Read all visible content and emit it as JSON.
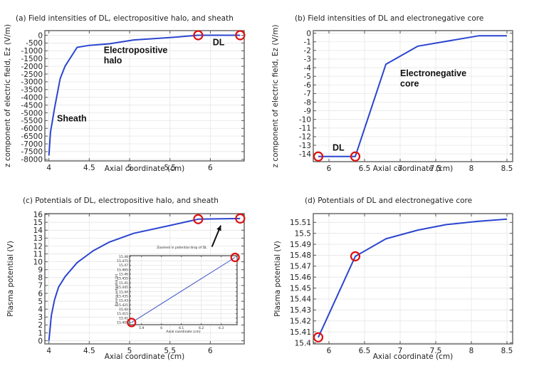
{
  "chart_data": [
    {
      "id": "a",
      "type": "line",
      "title": "(a) Field intensities of DL, electropositive halo, and sheath",
      "xlabel": "Axial coordinate (cm)",
      "ylabel": "z component of electric field, Ez (V/m)",
      "xlim": [
        3.95,
        6.42
      ],
      "ylim": [
        -8100,
        300
      ],
      "xticks": [
        4,
        4.5,
        5,
        5.5,
        6
      ],
      "xtick_labels": [
        "4",
        "4.5",
        "5",
        "5.5",
        "6"
      ],
      "yticks": [
        0,
        -500,
        -1000,
        -1500,
        -2000,
        -2500,
        -3000,
        -3500,
        -4000,
        -4500,
        -5000,
        -5500,
        -6000,
        -6500,
        -7000,
        -7500,
        -8000
      ],
      "ytick_labels": [
        "0",
        "-500",
        "-1000",
        "-1500",
        "-2000",
        "-2500",
        "-3000",
        "-3500",
        "-4000",
        "-4500",
        "-5000",
        "-5500",
        "-6000",
        "-6500",
        "-7000",
        "-7500",
        "-8000"
      ],
      "grid": true,
      "series": [
        {
          "name": "Ez",
          "x": [
            4.0,
            4.02,
            4.07,
            4.14,
            4.2,
            4.35,
            4.5,
            4.75,
            5.05,
            5.5,
            5.85,
            6.37
          ],
          "y": [
            -7750,
            -6250,
            -4700,
            -2800,
            -2000,
            -780,
            -650,
            -550,
            -300,
            -150,
            0,
            0
          ]
        }
      ],
      "markers": [
        {
          "x": 5.85,
          "y": 0
        },
        {
          "x": 6.37,
          "y": 0
        }
      ],
      "annotations": [
        {
          "text": "DL",
          "x": 6.03,
          "y": -650
        },
        {
          "text": "Electropositive",
          "x": 4.68,
          "y": -1150
        },
        {
          "text": "halo",
          "x": 4.68,
          "y": -1800
        },
        {
          "text": "Sheath",
          "x": 4.1,
          "y": -5550
        }
      ]
    },
    {
      "id": "b",
      "type": "line",
      "title": "(b) Field intensities of DL and electronegative core",
      "xlabel": "Axial coordinate (cm)",
      "ylabel": "z component of electric field, Ez (V/m)",
      "xlim": [
        5.78,
        8.58
      ],
      "ylim": [
        -14.9,
        0.3
      ],
      "xticks": [
        6,
        6.5,
        7,
        7.5,
        8,
        8.5
      ],
      "xtick_labels": [
        "6",
        "6.5",
        "7",
        "7.5",
        "8",
        "8.5"
      ],
      "yticks": [
        0,
        -1,
        -2,
        -3,
        -4,
        -5,
        -6,
        -7,
        -8,
        -9,
        -10,
        -11,
        -12,
        -13,
        -14
      ],
      "ytick_labels": [
        "0",
        "-1",
        "-2",
        "-3",
        "-4",
        "-5",
        "-6",
        "-7",
        "-8",
        "-9",
        "-10",
        "-11",
        "-12",
        "-13",
        "-14"
      ],
      "grid": true,
      "series": [
        {
          "name": "Ez",
          "x": [
            5.85,
            6.37,
            6.8,
            7.25,
            8.1,
            8.5
          ],
          "y": [
            -14.3,
            -14.3,
            -3.6,
            -1.5,
            -0.3,
            -0.3
          ]
        }
      ],
      "markers": [
        {
          "x": 5.85,
          "y": -14.3
        },
        {
          "x": 6.37,
          "y": -14.3
        }
      ],
      "annotations": [
        {
          "text": "DL",
          "x": 6.05,
          "y": -13.6
        },
        {
          "text": "Electronegative",
          "x": 7.0,
          "y": -5.0
        },
        {
          "text": "core",
          "x": 7.0,
          "y": -6.2
        }
      ]
    },
    {
      "id": "c",
      "type": "line",
      "title": "(c) Potentials of DL, electropositive halo, and sheath",
      "xlabel": "Axial coordinate (cm)",
      "ylabel": "Plasma potential (V)",
      "xlim": [
        3.95,
        6.42
      ],
      "ylim": [
        -0.4,
        16.1
      ],
      "xticks": [
        4,
        4.5,
        5,
        5.5,
        6
      ],
      "xtick_labels": [
        "4",
        "4.5",
        "5",
        "5.5",
        "6"
      ],
      "yticks": [
        0,
        1,
        2,
        3,
        4,
        5,
        6,
        7,
        8,
        9,
        10,
        11,
        12,
        13,
        14,
        15,
        16
      ],
      "ytick_labels": [
        "0",
        "1",
        "2",
        "3",
        "4",
        "5",
        "6",
        "7",
        "8",
        "9",
        "10",
        "11",
        "12",
        "13",
        "14",
        "15",
        "16"
      ],
      "grid": true,
      "series": [
        {
          "name": "Potential",
          "x": [
            4.0,
            4.03,
            4.07,
            4.12,
            4.2,
            4.35,
            4.55,
            4.75,
            5.05,
            5.5,
            5.85,
            6.37
          ],
          "y": [
            0,
            3.2,
            5.2,
            6.8,
            8.1,
            9.9,
            11.4,
            12.5,
            13.6,
            14.6,
            15.4,
            15.48
          ]
        }
      ],
      "markers": [
        {
          "x": 5.85,
          "y": 15.4
        },
        {
          "x": 6.37,
          "y": 15.48
        }
      ],
      "arrow": {
        "from": {
          "x": 6.02,
          "y": 11.9
        },
        "to": {
          "x": 6.13,
          "y": 14.6
        }
      },
      "inset": {
        "title": "Zoomed in potential drop of DL",
        "xlabel": "Axial coordinate (cm)",
        "ylabel": "Plasma potential (V)",
        "xlim": [
          5.84,
          6.38
        ],
        "ylim": [
          15.4025,
          15.481
        ],
        "xticks": [
          5.9,
          6,
          6.1,
          6.2,
          6.3
        ],
        "xtick_labels": [
          "5.9",
          "6",
          "6.1",
          "6.2",
          "6.3"
        ],
        "yticks": [
          15.405,
          15.41,
          15.415,
          15.42,
          15.425,
          15.43,
          15.435,
          15.44,
          15.445,
          15.45,
          15.455,
          15.46,
          15.465,
          15.47,
          15.475,
          15.48
        ],
        "ytick_labels": [
          "15.405",
          "15.41",
          "15.415",
          "15.42",
          "15.425",
          "15.43",
          "15.435",
          "15.44",
          "15.445",
          "15.45",
          "15.455",
          "15.46",
          "15.465",
          "15.47",
          "15.475",
          "15.48"
        ],
        "series": [
          {
            "name": "Potential",
            "x": [
              5.85,
              6.37
            ],
            "y": [
              15.405,
              15.479
            ]
          }
        ],
        "markers": [
          {
            "x": 5.85,
            "y": 15.405
          },
          {
            "x": 6.37,
            "y": 15.479
          }
        ]
      }
    },
    {
      "id": "d",
      "type": "line",
      "title": "(d) Potentials of DL and electronegative core",
      "xlabel": "Axial coordinate (cm)",
      "ylabel": "Plasma potential (V)",
      "xlim": [
        5.78,
        8.58
      ],
      "ylim": [
        15.399,
        15.518
      ],
      "xticks": [
        6,
        6.5,
        7,
        7.5,
        8,
        8.5
      ],
      "xtick_labels": [
        "6",
        "6.5",
        "7",
        "7.5",
        "8",
        "8.5"
      ],
      "yticks": [
        15.4,
        15.41,
        15.42,
        15.43,
        15.44,
        15.45,
        15.46,
        15.47,
        15.48,
        15.49,
        15.5,
        15.51
      ],
      "ytick_labels": [
        "15.4",
        "15.41",
        "15.42",
        "15.43",
        "15.44",
        "15.45",
        "15.46",
        "15.47",
        "15.48",
        "15.49",
        "15.5",
        "15.51"
      ],
      "grid": true,
      "series": [
        {
          "name": "Potential",
          "x": [
            5.85,
            6.37,
            6.8,
            7.25,
            7.65,
            8.1,
            8.5
          ],
          "y": [
            15.405,
            15.479,
            15.495,
            15.503,
            15.508,
            15.511,
            15.513
          ]
        }
      ],
      "markers": [
        {
          "x": 5.85,
          "y": 15.405
        },
        {
          "x": 6.37,
          "y": 15.479
        }
      ]
    }
  ],
  "colors": {
    "line": "#2b45d0",
    "marker": "#dd1111",
    "arrow": "#111111"
  }
}
